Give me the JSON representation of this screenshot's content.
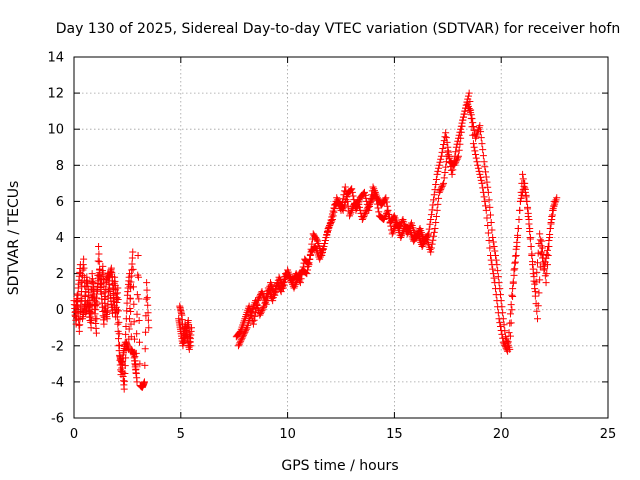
{
  "chart_data": {
    "type": "scatter",
    "title": "Day 130 of 2025, Sidereal Day-to-day VTEC variation (SDTVAR) for receiver hofn",
    "xlabel": "GPS time / hours",
    "ylabel": "SDTVAR / TECUs",
    "xlim": [
      0,
      25
    ],
    "ylim": [
      -6,
      14
    ],
    "xticks": [
      0,
      5,
      10,
      15,
      20,
      25
    ],
    "yticks": [
      -6,
      -4,
      -2,
      0,
      2,
      4,
      6,
      8,
      10,
      12,
      14
    ],
    "grid": true,
    "marker": "+",
    "color": "#ff0000",
    "series": [
      {
        "name": "SDTVAR",
        "segments": [
          {
            "x": [
              0.0,
              0.1,
              0.2,
              0.3,
              0.4,
              0.5,
              0.6,
              0.7,
              0.8,
              0.9,
              1.0,
              1.1,
              1.2,
              1.3,
              1.4,
              1.5,
              1.6,
              1.7,
              1.8,
              1.9,
              2.0,
              2.1,
              2.2,
              2.3,
              2.4,
              2.5,
              2.6,
              2.7,
              2.8,
              2.9,
              3.0,
              3.1,
              3.2,
              3.3,
              3.4,
              3.5
            ],
            "y": [
              0.5,
              -0.8,
              1.2,
              2.5,
              -0.5,
              0.2,
              1.8,
              0.8,
              -1.0,
              1.5,
              0.0,
              1.3,
              2.2,
              0.6,
              -0.8,
              1.5,
              2.0,
              0.8,
              -0.2,
              1.8,
              0.4,
              -2.0,
              -3.6,
              -2.5,
              -1.8,
              0.8,
              2.0,
              -2.2,
              -2.5,
              -3.5,
              3.0,
              -4.2,
              -4.3,
              -4.0,
              1.5,
              -1.0
            ]
          },
          {
            "x": [
              0.05,
              0.15,
              0.25,
              0.35,
              0.45,
              0.55,
              0.65,
              0.75,
              0.85,
              0.95,
              1.05,
              1.15,
              1.25,
              1.35,
              1.45,
              1.55,
              1.65,
              1.75,
              1.85,
              1.95,
              2.05,
              2.15,
              2.25,
              2.35,
              2.45,
              2.55,
              2.65,
              2.75,
              2.85,
              2.95
            ],
            "y": [
              -0.3,
              0.8,
              -1.2,
              1.0,
              2.8,
              -0.2,
              0.5,
              -0.6,
              2.0,
              0.3,
              -1.3,
              3.5,
              1.0,
              2.4,
              0.2,
              -0.5,
              1.8,
              2.3,
              0.9,
              -0.4,
              1.2,
              -2.6,
              -3.0,
              -4.4,
              -1.8,
              -2.2,
              1.2,
              3.2,
              -2.6,
              -4.0
            ]
          },
          {
            "x": [
              4.9,
              5.0,
              5.1,
              5.2,
              5.3,
              5.4,
              5.5,
              4.95,
              5.05,
              5.15,
              5.25,
              5.35,
              5.45
            ],
            "y": [
              -0.5,
              -1.2,
              -2.0,
              -0.8,
              -1.5,
              -2.2,
              -1.0,
              0.2,
              -0.3,
              -1.8,
              -1.3,
              -0.6,
              -2.0
            ]
          },
          {
            "x": [
              7.6,
              7.8,
              8.0,
              8.2,
              8.4,
              8.6,
              8.8,
              9.0,
              9.2,
              9.4,
              9.6,
              9.8,
              10.0,
              10.2,
              10.4,
              10.6,
              10.8,
              11.0,
              11.2,
              11.4,
              11.6,
              11.8,
              12.0,
              12.2,
              12.4,
              12.6,
              12.8,
              13.0,
              13.2,
              13.4,
              13.6,
              13.8,
              14.0,
              14.2,
              14.4,
              14.6,
              14.8,
              15.0,
              15.2,
              15.4,
              15.6,
              15.8,
              16.0,
              16.2,
              16.4,
              16.6,
              16.8,
              17.0,
              17.2,
              17.4,
              17.6,
              17.8,
              18.0,
              18.2,
              18.4,
              18.6,
              18.8,
              19.0,
              19.2,
              19.4,
              19.6,
              19.8,
              20.0,
              20.2,
              20.4,
              20.6,
              20.8,
              21.0,
              21.2,
              21.4,
              21.6,
              21.8,
              22.0,
              22.2,
              22.4,
              22.6
            ],
            "y": [
              -1.5,
              -1.2,
              -0.5,
              0.2,
              -0.8,
              0.5,
              1.0,
              0.3,
              1.5,
              0.8,
              1.8,
              1.2,
              2.2,
              1.5,
              2.0,
              1.5,
              2.8,
              2.5,
              4.2,
              3.8,
              3.0,
              4.0,
              4.8,
              5.8,
              6.0,
              5.5,
              6.4,
              6.7,
              5.5,
              6.2,
              6.5,
              5.5,
              6.8,
              6.2,
              5.8,
              6.2,
              4.8,
              5.2,
              4.5,
              5.0,
              4.2,
              4.8,
              4.0,
              4.5,
              3.8,
              4.2,
              5.8,
              7.5,
              8.5,
              9.8,
              8.2,
              8.0,
              8.5,
              10.5,
              11.5,
              10.8,
              9.5,
              10.2,
              8.2,
              6.5,
              4.0,
              2.5,
              0.5,
              -1.5,
              -2.2,
              2.2,
              4.5,
              7.5,
              6.0,
              3.5,
              1.0,
              4.2,
              2.2,
              3.5,
              5.5,
              6.2
            ]
          },
          {
            "x": [
              7.7,
              7.9,
              8.1,
              8.3,
              8.5,
              8.7,
              8.9,
              9.1,
              9.3,
              9.5,
              9.7,
              9.9,
              10.1,
              10.3,
              10.5,
              10.7,
              10.9,
              11.1,
              11.3,
              11.5,
              11.7,
              11.9,
              12.1,
              12.3,
              12.5,
              12.7,
              12.9,
              13.1,
              13.3,
              13.5,
              13.7,
              13.9,
              14.1,
              14.3,
              14.5,
              14.7,
              14.9,
              15.1,
              15.3,
              15.5,
              15.7,
              15.9,
              16.1,
              16.3,
              16.5,
              16.7,
              16.9,
              17.1,
              17.3,
              17.5,
              17.7,
              17.9,
              18.1,
              18.3,
              18.5,
              18.7,
              18.9,
              19.1,
              19.3,
              19.5,
              19.7,
              19.9,
              20.1,
              20.3,
              20.5,
              20.7,
              20.9,
              21.1,
              21.3,
              21.5,
              21.7,
              21.9,
              22.1,
              22.3,
              22.5
            ],
            "y": [
              -2.0,
              -1.5,
              -1.0,
              -0.2,
              0.5,
              -0.3,
              0.2,
              1.2,
              0.5,
              1.5,
              1.0,
              2.0,
              1.8,
              1.2,
              1.8,
              2.2,
              2.0,
              3.2,
              3.5,
              2.8,
              3.5,
              4.5,
              5.0,
              6.2,
              5.5,
              6.8,
              5.2,
              5.8,
              6.0,
              5.0,
              5.5,
              6.0,
              6.5,
              5.2,
              5.0,
              5.5,
              4.2,
              4.8,
              4.0,
              4.6,
              4.5,
              3.8,
              4.2,
              3.5,
              4.0,
              3.2,
              4.5,
              6.5,
              7.0,
              8.8,
              7.5,
              9.0,
              10.0,
              11.0,
              12.0,
              9.2,
              8.0,
              7.0,
              5.5,
              3.0,
              1.5,
              -0.5,
              -1.8,
              -2.3,
              0.8,
              3.0,
              6.0,
              7.0,
              5.0,
              2.0,
              -0.5,
              3.8,
              1.5,
              4.5,
              6.0
            ]
          }
        ]
      }
    ]
  }
}
